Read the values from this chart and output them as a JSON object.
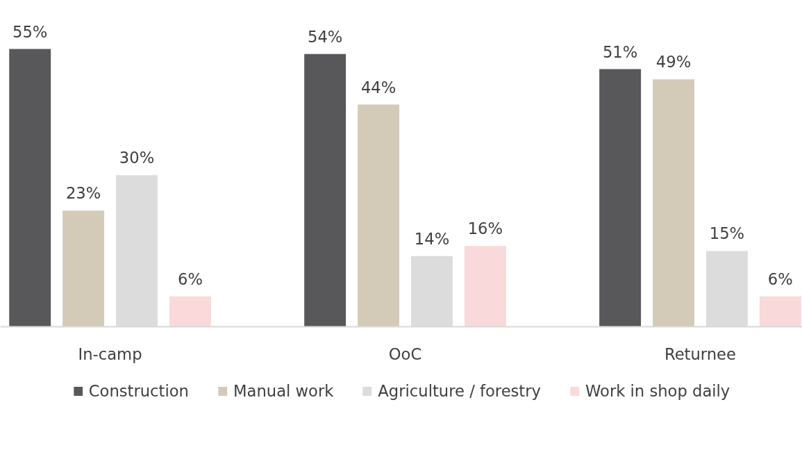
{
  "chart_data": {
    "type": "bar",
    "categories": [
      "In-camp",
      "OoC",
      "Returnee"
    ],
    "legend": "bottom",
    "grid": false,
    "series": [
      {
        "name": "Construction",
        "color": "#58585a",
        "values": [
          55,
          54,
          51
        ],
        "value_labels": [
          "55%",
          "54%",
          "51%"
        ]
      },
      {
        "name": "Manual work",
        "color": "#d3cbb8",
        "values": [
          23,
          44,
          49
        ],
        "value_labels": [
          "23%",
          "44%",
          "49%"
        ]
      },
      {
        "name": "Agriculture / forestry",
        "color": "#dcdcdc",
        "values": [
          30,
          14,
          15
        ],
        "value_labels": [
          "30%",
          "14%",
          "15%"
        ]
      },
      {
        "name": "Work in shop daily",
        "color": "#f9d9d9",
        "values": [
          6,
          16,
          6
        ],
        "value_labels": [
          "6%",
          "16%",
          "6%"
        ]
      }
    ]
  }
}
